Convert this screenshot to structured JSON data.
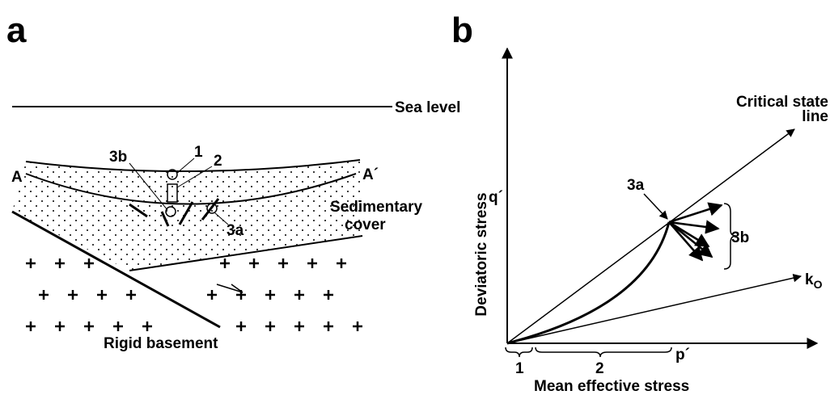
{
  "panel_a": {
    "label": "a",
    "sea_level": "Sea level",
    "point_1": "1",
    "point_2": "2",
    "point_3a": "3a",
    "point_3b": "3b",
    "horizon_start": "A",
    "horizon_end": "A´",
    "sedimentary_cover": [
      "Sedimentary",
      "cover"
    ],
    "rigid_basement": "Rigid basement"
  },
  "panel_b": {
    "label": "b",
    "y_axis": "Deviatoric stress",
    "y_symbol": "q´",
    "x_symbol": "p´",
    "x_axis": "Mean effective stress",
    "critical_state_line": [
      "Critical state",
      "line"
    ],
    "k_line": "k",
    "k_line_sub": "O",
    "point_3a": "3a",
    "point_3b": "3b",
    "stage_1": "1",
    "stage_2": "2"
  }
}
